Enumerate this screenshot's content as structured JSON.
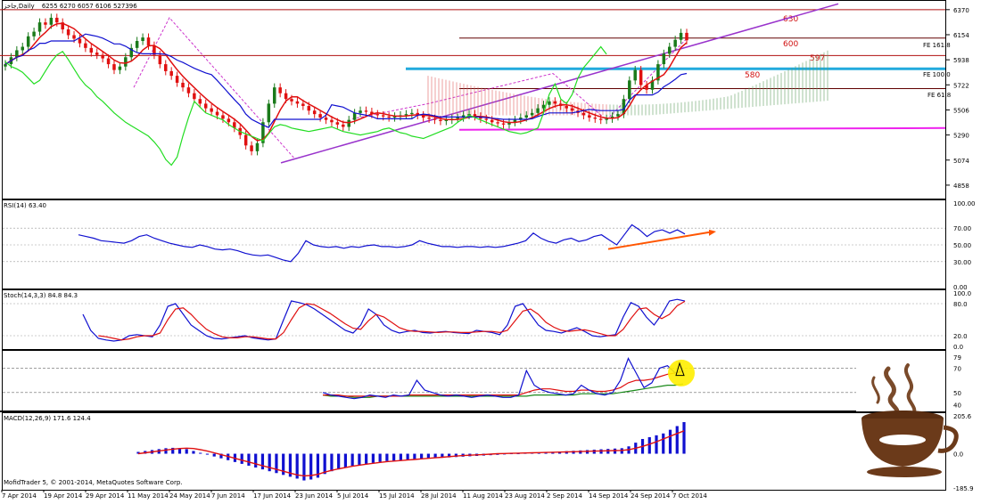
{
  "window": {
    "symbol_title": "جاخز,Daily",
    "ohlc_readout": "6255 6270 6057 6106  527396",
    "copyright": "MofidTrader 5, © 2001-2014, MetaQuotes Software Corp."
  },
  "panels": {
    "rsi_label": "RSI(14) 63.40",
    "stoch_label": "Stoch(14,3,3) 84.8 84.3",
    "macd_label": "MACD(12,26,9) 171.6 124.4"
  },
  "annotations": {
    "levels": [
      "630",
      "600",
      "597",
      "580"
    ],
    "fe": [
      "FE 161.8",
      "FE 100.0",
      "FE 61.8"
    ]
  },
  "colors": {
    "price_up": "#1a7a1a",
    "price_down": "#e01010",
    "tenkan": "#e01010",
    "kijun": "#1010d0",
    "chikou": "#22dd22",
    "trend": "#9933cc",
    "magenta": "#ee22ee",
    "cyan": "#22aadd",
    "rsi": "#1010d0",
    "stoch_main": "#1010d0",
    "stoch_signal": "#e01010",
    "macd_hist": "#1010d0",
    "macd_signal": "#e01010",
    "arrow": "#ff5500",
    "highlight": "#ffee00"
  },
  "chart_data": [
    {
      "type": "line",
      "title": "جاخز,Daily",
      "y_ticks": [
        "6370",
        "6154",
        "5938",
        "5722",
        "5506",
        "5290",
        "5074",
        "4858"
      ],
      "x_ticks": [
        "7 Apr 2014",
        "19 Apr 2014",
        "29 Apr 2014",
        "11 May 2014",
        "24 May 2014",
        "7 Jun 2014",
        "17 Jun 2014",
        "23 Jun 2014",
        "5 Jul 2014",
        "15 Jul 2014",
        "28 Jul 2014",
        "11 Aug 2014",
        "23 Aug 2014",
        "2 Sep 2014",
        "14 Sep 2014",
        "24 Sep 2014",
        "7 Oct 2014"
      ],
      "ylim": [
        4750,
        6430
      ],
      "horizontal_levels": [
        6370,
        6125,
        5975,
        5860,
        5690
      ],
      "close_series": [
        5900,
        5960,
        6020,
        6050,
        6140,
        6180,
        6260,
        6240,
        6300,
        6260,
        6200,
        6150,
        6120,
        6080,
        6040,
        6000,
        5980,
        5950,
        5900,
        5850,
        5880,
        5960,
        6040,
        6100,
        6130,
        6060,
        5980,
        5900,
        5840,
        5800,
        5740,
        5700,
        5650,
        5600,
        5560,
        5520,
        5490,
        5460,
        5430,
        5400,
        5350,
        5290,
        5200,
        5150,
        5220,
        5400,
        5560,
        5700,
        5650,
        5600,
        5580,
        5560,
        5540,
        5500,
        5470,
        5440,
        5420,
        5400,
        5380,
        5360,
        5420,
        5480,
        5500,
        5490,
        5470,
        5460,
        5450,
        5440,
        5450,
        5460,
        5470,
        5480,
        5460,
        5440,
        5430,
        5420,
        5410,
        5420,
        5430,
        5440,
        5460,
        5470,
        5450,
        5430,
        5420,
        5400,
        5390,
        5380,
        5400,
        5420,
        5440,
        5460,
        5480,
        5520,
        5550,
        5580,
        5560,
        5540,
        5520,
        5500,
        5480,
        5460,
        5440,
        5430,
        5420,
        5430,
        5450,
        5470,
        5600,
        5760,
        5850,
        5720,
        5680,
        5760,
        5900,
        5990,
        6050,
        6110,
        6170,
        6106
      ]
    },
    {
      "type": "line",
      "title": "RSI(14) 63.40",
      "y_ticks": [
        "100.00",
        "70.00",
        "50.00",
        "30.00",
        "0.00"
      ],
      "ylim": [
        0,
        100
      ],
      "values": [
        62,
        60,
        58,
        55,
        54,
        53,
        52,
        55,
        60,
        62,
        58,
        55,
        52,
        50,
        48,
        47,
        50,
        48,
        45,
        44,
        45,
        43,
        40,
        38,
        37,
        38,
        35,
        32,
        30,
        40,
        55,
        50,
        48,
        47,
        48,
        46,
        48,
        47,
        49,
        50,
        48,
        48,
        47,
        48,
        50,
        55,
        52,
        50,
        48,
        48,
        47,
        48,
        48,
        47,
        48,
        47,
        48,
        50,
        52,
        55,
        64,
        58,
        54,
        52,
        56,
        58,
        54,
        56,
        60,
        62,
        56,
        50,
        62,
        74,
        68,
        60,
        66,
        68,
        64,
        68,
        63
      ]
    },
    {
      "type": "line",
      "title": "Stoch(14,3,3) 84.8 84.3",
      "y_ticks": [
        "100.0",
        "80.0",
        "20.0",
        "0.0"
      ],
      "ylim": [
        0,
        100
      ],
      "main": [
        60,
        30,
        15,
        12,
        10,
        12,
        20,
        22,
        20,
        18,
        40,
        75,
        80,
        60,
        40,
        30,
        20,
        15,
        14,
        16,
        18,
        20,
        16,
        14,
        12,
        14,
        50,
        85,
        82,
        78,
        70,
        60,
        50,
        40,
        30,
        25,
        40,
        70,
        60,
        40,
        30,
        25,
        28,
        30,
        26,
        25,
        27,
        28,
        26,
        25,
        24,
        30,
        28,
        26,
        22,
        40,
        75,
        80,
        60,
        40,
        30,
        28,
        25,
        30,
        35,
        28,
        20,
        18,
        20,
        22,
        55,
        82,
        75,
        55,
        40,
        60,
        85,
        88,
        84.8
      ],
      "signal": [
        null,
        null,
        20,
        18,
        15,
        12,
        14,
        18,
        20,
        20,
        25,
        50,
        70,
        72,
        60,
        45,
        32,
        24,
        18,
        16,
        16,
        18,
        18,
        16,
        14,
        14,
        26,
        50,
        72,
        80,
        78,
        70,
        62,
        52,
        42,
        34,
        32,
        48,
        60,
        55,
        45,
        35,
        30,
        28,
        28,
        27,
        26,
        27,
        27,
        26,
        26,
        27,
        28,
        28,
        26,
        30,
        48,
        66,
        70,
        60,
        45,
        36,
        30,
        28,
        30,
        31,
        28,
        24,
        20,
        20,
        32,
        52,
        70,
        72,
        60,
        52,
        60,
        76,
        84.3
      ]
    },
    {
      "type": "line",
      "title": "",
      "y_ticks": [
        "79",
        "70",
        "50",
        "40"
      ],
      "ylim": [
        36,
        82
      ],
      "blue": [
        50,
        48,
        47,
        46,
        45,
        46,
        48,
        47,
        46,
        48,
        47,
        48,
        60,
        52,
        50,
        48,
        47,
        48,
        47,
        46,
        47,
        48,
        47,
        46,
        46,
        48,
        68,
        56,
        52,
        50,
        49,
        48,
        49,
        56,
        52,
        49,
        48,
        50,
        60,
        78,
        66,
        54,
        58,
        70,
        72,
        66,
        68
      ],
      "red": [
        48,
        48,
        48,
        47,
        47,
        47,
        47,
        47,
        47,
        47,
        47,
        48,
        48,
        48,
        48,
        48,
        48,
        48,
        48,
        48,
        48,
        48,
        48,
        48,
        48,
        48,
        50,
        52,
        53,
        53,
        52,
        51,
        51,
        52,
        52,
        51,
        51,
        52,
        54,
        58,
        60,
        60,
        61,
        63,
        65,
        66,
        67
      ],
      "green": [
        48,
        47,
        47,
        47,
        46,
        46,
        46,
        47,
        47,
        47,
        47,
        47,
        47,
        47,
        47,
        47,
        47,
        47,
        47,
        47,
        47,
        47,
        47,
        47,
        47,
        47,
        47,
        48,
        48,
        48,
        48,
        48,
        48,
        49,
        49,
        49,
        49,
        49,
        50,
        51,
        52,
        53,
        54,
        55,
        56,
        56,
        57
      ]
    },
    {
      "type": "bar",
      "title": "MACD(12,26,9) 171.6 124.4",
      "y_ticks": [
        "205.6",
        "0.0",
        "-185.9"
      ],
      "ylim": [
        -185.9,
        205.6
      ],
      "histogram": [
        10,
        15,
        20,
        25,
        30,
        32,
        30,
        25,
        15,
        5,
        -5,
        -15,
        -25,
        -35,
        -45,
        -55,
        -65,
        -75,
        -85,
        -95,
        -105,
        -115,
        -125,
        -135,
        -145,
        -140,
        -130,
        -110,
        -95,
        -85,
        -75,
        -65,
        -60,
        -55,
        -50,
        -45,
        -40,
        -38,
        -35,
        -32,
        -30,
        -28,
        -26,
        -24,
        -22,
        -20,
        -18,
        -16,
        -14,
        -12,
        -10,
        -8,
        -6,
        -4,
        -2,
        0,
        2,
        4,
        6,
        8,
        10,
        12,
        14,
        16,
        18,
        20,
        22,
        24,
        26,
        28,
        30,
        40,
        60,
        80,
        90,
        100,
        110,
        130,
        150,
        171.6
      ],
      "signal": [
        0,
        5,
        10,
        15,
        20,
        25,
        28,
        30,
        28,
        22,
        14,
        5,
        -5,
        -15,
        -25,
        -35,
        -45,
        -55,
        -65,
        -75,
        -85,
        -95,
        -105,
        -115,
        -120,
        -118,
        -112,
        -100,
        -90,
        -82,
        -75,
        -68,
        -62,
        -57,
        -52,
        -47,
        -43,
        -40,
        -37,
        -34,
        -31,
        -28,
        -25,
        -22,
        -19,
        -16,
        -13,
        -10,
        -8,
        -6,
        -4,
        -2,
        0,
        1,
        2,
        3,
        4,
        5,
        6,
        7,
        8,
        9,
        10,
        11,
        12,
        13,
        14,
        15,
        16,
        17,
        18,
        22,
        30,
        40,
        52,
        65,
        80,
        95,
        110,
        124.4
      ]
    }
  ]
}
